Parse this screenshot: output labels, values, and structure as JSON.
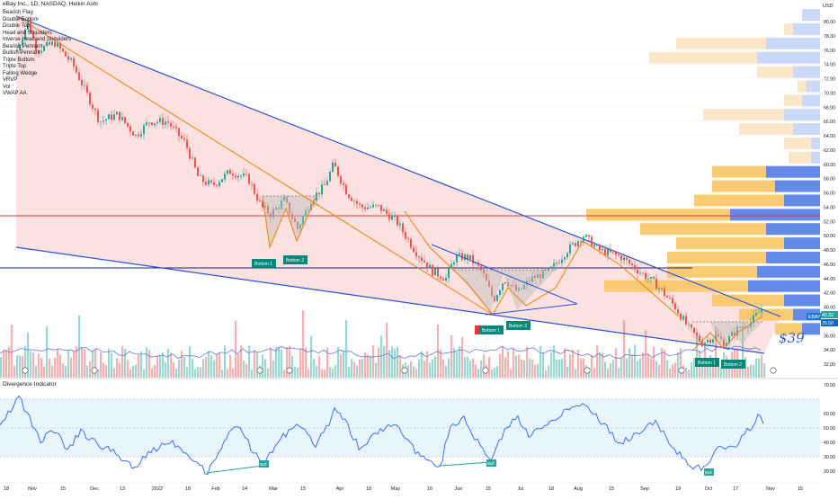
{
  "header": {
    "symbol_line": "eBay Inc., 1D, NASDAQ, Heikin Ashi"
  },
  "indicators": [
    "Bearish Flag",
    "Double Bottom",
    "Double Top",
    "Head and Shoulders",
    "Inverse Head and Shoulders",
    "Bearish Pennant",
    "Bullish Pennant",
    "Triple Bottom",
    "Triple Top",
    "Falling Wedge",
    "VRVP",
    "Vol",
    "VWAP AA"
  ],
  "price_axis": {
    "currency": "USD",
    "ticks": [
      "80.00",
      "78.00",
      "76.00",
      "74.00",
      "72.00",
      "70.00",
      "68.00",
      "66.00",
      "64.00",
      "62.00",
      "60.00",
      "58.00",
      "56.00",
      "54.00",
      "52.00",
      "50.00",
      "48.00",
      "46.00",
      "44.00",
      "42.00",
      "40.00",
      "38.00",
      "36.00",
      "34.00",
      "32.00"
    ]
  },
  "price_badges": {
    "ebay_label": "EBAY",
    "last_price": "40.32",
    "second_price": "39.50"
  },
  "annotation": {
    "handwritten_price": "$39"
  },
  "pattern_labels": {
    "bottom1_a": "Bottom 1",
    "bottom2_a": "Bottom 2",
    "bottom1_b": "Bottom 1",
    "bottom2_b": "Bottom 2",
    "bottom1_c": "Bottom 1",
    "bottom2_c": "Bottom 2"
  },
  "oscillator": {
    "title": "Divergence Indicator",
    "ticks": [
      "70.00",
      "60.00",
      "50.00",
      "40.00",
      "30.00",
      "20.00"
    ],
    "bull_label": "Bull"
  },
  "time_axis": [
    "18",
    "Nov",
    "15",
    "Dec",
    "13",
    "2022",
    "18",
    "Feb",
    "14",
    "Mar",
    "15",
    "Apr",
    "18",
    "May",
    "16",
    "Jun",
    "15",
    "Jul",
    "18",
    "Aug",
    "15",
    "Sep",
    "19",
    "Oct",
    "17",
    "Nov",
    "15"
  ],
  "colors": {
    "bull": "#26a69a",
    "bear": "#ef5350",
    "wedge_fill": "#fcdede",
    "wedge_line": "#2a52d6",
    "orange": "#f57c00",
    "vrvp_blue": "#5b84e8",
    "vrvp_yellow": "#f9c86a",
    "vrvp_pale": "#fbe6c4",
    "vrvp_paleblue": "#c9d6f7"
  }
}
